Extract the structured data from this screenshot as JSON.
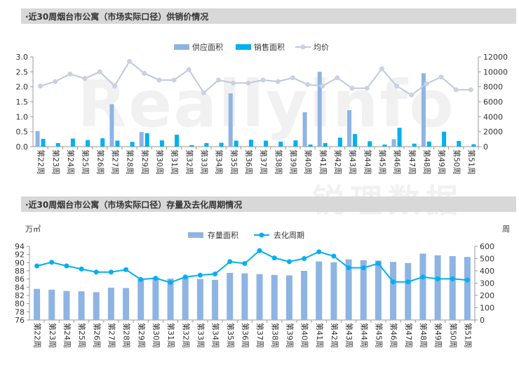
{
  "charts": [
    {
      "title": "·近30周烟台市公寓（市场实际口径）供销价情况",
      "legend": {
        "bar1": "供应面积",
        "bar2": "销售面积",
        "line": "均价"
      },
      "colors": {
        "bar1": "#8eb4e3",
        "bar2": "#00b0f0",
        "line": "#bfc8dc",
        "marker": "#c9d1e2"
      }
    },
    {
      "title": "·近30周烟台市公寓（市场实际口径）存量及去化周期情况",
      "unit_left": "万㎡",
      "unit_right": "周",
      "legend": {
        "bar": "存量面积",
        "line": "去化周期"
      },
      "colors": {
        "bar": "#8eb4e3",
        "line": "#00b0f0"
      }
    }
  ],
  "watermark": {
    "text": "Reallyinfo",
    "subtext": "锐理数据"
  },
  "chart_data": [
    {
      "type": "bar",
      "title": "·近30周烟台市公寓（市场实际口径）供销价情况",
      "categories": [
        "第22周",
        "第23周",
        "第24周",
        "第25周",
        "第26周",
        "第27周",
        "第28周",
        "第29周",
        "第30周",
        "第31周",
        "第32周",
        "第33周",
        "第34周",
        "第35周",
        "第36周",
        "第37周",
        "第38周",
        "第39周",
        "第40周",
        "第41周",
        "第42周",
        "第43周",
        "第44周",
        "第45周",
        "第46周",
        "第47周",
        "第48周",
        "第49周",
        "第50周",
        "第51周"
      ],
      "series": [
        {
          "name": "供应面积",
          "type": "bar",
          "axis": "left",
          "values": [
            0.52,
            0,
            0,
            0,
            0,
            1.42,
            0,
            0.49,
            0,
            0,
            0,
            0,
            0,
            1.78,
            0,
            0,
            0,
            0,
            1.15,
            2.5,
            0,
            1.22,
            0,
            0,
            0.25,
            0,
            2.45,
            0,
            0,
            0
          ]
        },
        {
          "name": "销售面积",
          "type": "bar",
          "axis": "left",
          "values": [
            0.26,
            0.12,
            0.27,
            0.22,
            0.28,
            0.2,
            0.16,
            0.45,
            0.21,
            0.4,
            0.05,
            0.12,
            0.13,
            0.2,
            0.23,
            0.2,
            0.17,
            0.21,
            0.07,
            0.12,
            0.3,
            0.42,
            0.18,
            0.07,
            0.63,
            0.1,
            0.17,
            0.5,
            0.19,
            0.08
          ]
        },
        {
          "name": "均价",
          "type": "line",
          "axis": "right",
          "values": [
            8100,
            8700,
            9700,
            9100,
            10000,
            8100,
            11400,
            9800,
            8900,
            8900,
            10300,
            7200,
            8900,
            8500,
            8500,
            8900,
            8700,
            9200,
            8300,
            8100,
            9200,
            7800,
            7800,
            10400,
            8100,
            6900,
            8400,
            9300,
            7600,
            7600
          ]
        }
      ],
      "ylim_left": [
        0,
        3.0
      ],
      "yticks_left": [
        "0.0",
        "0.5",
        "1.0",
        "1.5",
        "2.0",
        "2.5",
        "3.0"
      ],
      "ylim_right": [
        0,
        12000
      ],
      "yticks_right": [
        "0",
        "2000",
        "4000",
        "6000",
        "8000",
        "10000",
        "12000"
      ],
      "legend_position": "top-center",
      "grid": false
    },
    {
      "type": "bar",
      "title": "·近30周烟台市公寓（市场实际口径）存量及去化周期情况",
      "categories": [
        "第22周",
        "第23周",
        "第24周",
        "第25周",
        "第26周",
        "第27周",
        "第28周",
        "第29周",
        "第30周",
        "第31周",
        "第32周",
        "第33周",
        "第34周",
        "第35周",
        "第36周",
        "第37周",
        "第38周",
        "第39周",
        "第40周",
        "第41周",
        "第42周",
        "第43周",
        "第44周",
        "第45周",
        "第46周",
        "第47周",
        "第48周",
        "第49周",
        "第50周",
        "第51周"
      ],
      "series": [
        {
          "name": "存量面积",
          "type": "bar",
          "axis": "left",
          "values": [
            83.6,
            83.4,
            83.1,
            83.0,
            82.8,
            83.9,
            83.8,
            86.0,
            86.4,
            86.1,
            86.4,
            86.0,
            85.8,
            87.5,
            87.4,
            87.2,
            87.0,
            86.9,
            88.0,
            90.3,
            90.1,
            90.8,
            90.6,
            90.5,
            90.2,
            89.9,
            92.2,
            91.8,
            91.6,
            91.4
          ]
        },
        {
          "name": "去化周期",
          "type": "line",
          "axis": "right",
          "values": [
            440,
            470,
            440,
            415,
            390,
            390,
            410,
            330,
            340,
            305,
            350,
            365,
            375,
            475,
            460,
            565,
            505,
            475,
            500,
            555,
            520,
            425,
            425,
            460,
            310,
            310,
            350,
            335,
            335,
            325
          ]
        }
      ],
      "ylim_left": [
        76,
        94
      ],
      "yticks_left": [
        "76",
        "78",
        "80",
        "82",
        "84",
        "86",
        "88",
        "90",
        "92",
        "94"
      ],
      "ylim_right": [
        0,
        600
      ],
      "yticks_right": [
        "0",
        "100",
        "200",
        "300",
        "400",
        "500",
        "600"
      ],
      "legend_position": "top-center",
      "grid": false
    }
  ]
}
